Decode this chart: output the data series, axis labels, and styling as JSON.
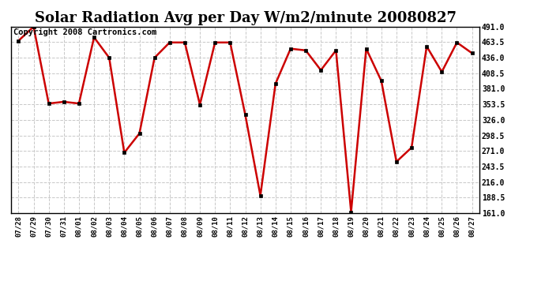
{
  "title": "Solar Radiation Avg per Day W/m2/minute 20080827",
  "copyright": "Copyright 2008 Cartronics.com",
  "labels": [
    "07/28",
    "07/29",
    "07/30",
    "07/31",
    "08/01",
    "08/02",
    "08/03",
    "08/04",
    "08/05",
    "08/06",
    "08/07",
    "08/08",
    "08/09",
    "08/10",
    "08/11",
    "08/12",
    "08/13",
    "08/14",
    "08/15",
    "08/16",
    "08/17",
    "08/18",
    "08/19",
    "08/20",
    "08/21",
    "08/22",
    "08/23",
    "08/24",
    "08/25",
    "08/26",
    "08/27"
  ],
  "values": [
    466,
    491,
    355,
    358,
    355,
    472,
    436,
    268,
    302,
    436,
    463,
    463,
    353,
    463,
    463,
    335,
    192,
    390,
    452,
    449,
    414,
    449,
    163,
    452,
    395,
    252,
    277,
    456,
    411,
    463,
    444
  ],
  "line_color": "#cc0000",
  "marker_color": "#000000",
  "bg_color": "#ffffff",
  "grid_color": "#c8c8c8",
  "ylim": [
    161.0,
    491.0
  ],
  "yticks": [
    161.0,
    188.5,
    216.0,
    243.5,
    271.0,
    298.5,
    326.0,
    353.5,
    381.0,
    408.5,
    436.0,
    463.5,
    491.0
  ],
  "title_fontsize": 13,
  "copyright_fontsize": 7.5
}
